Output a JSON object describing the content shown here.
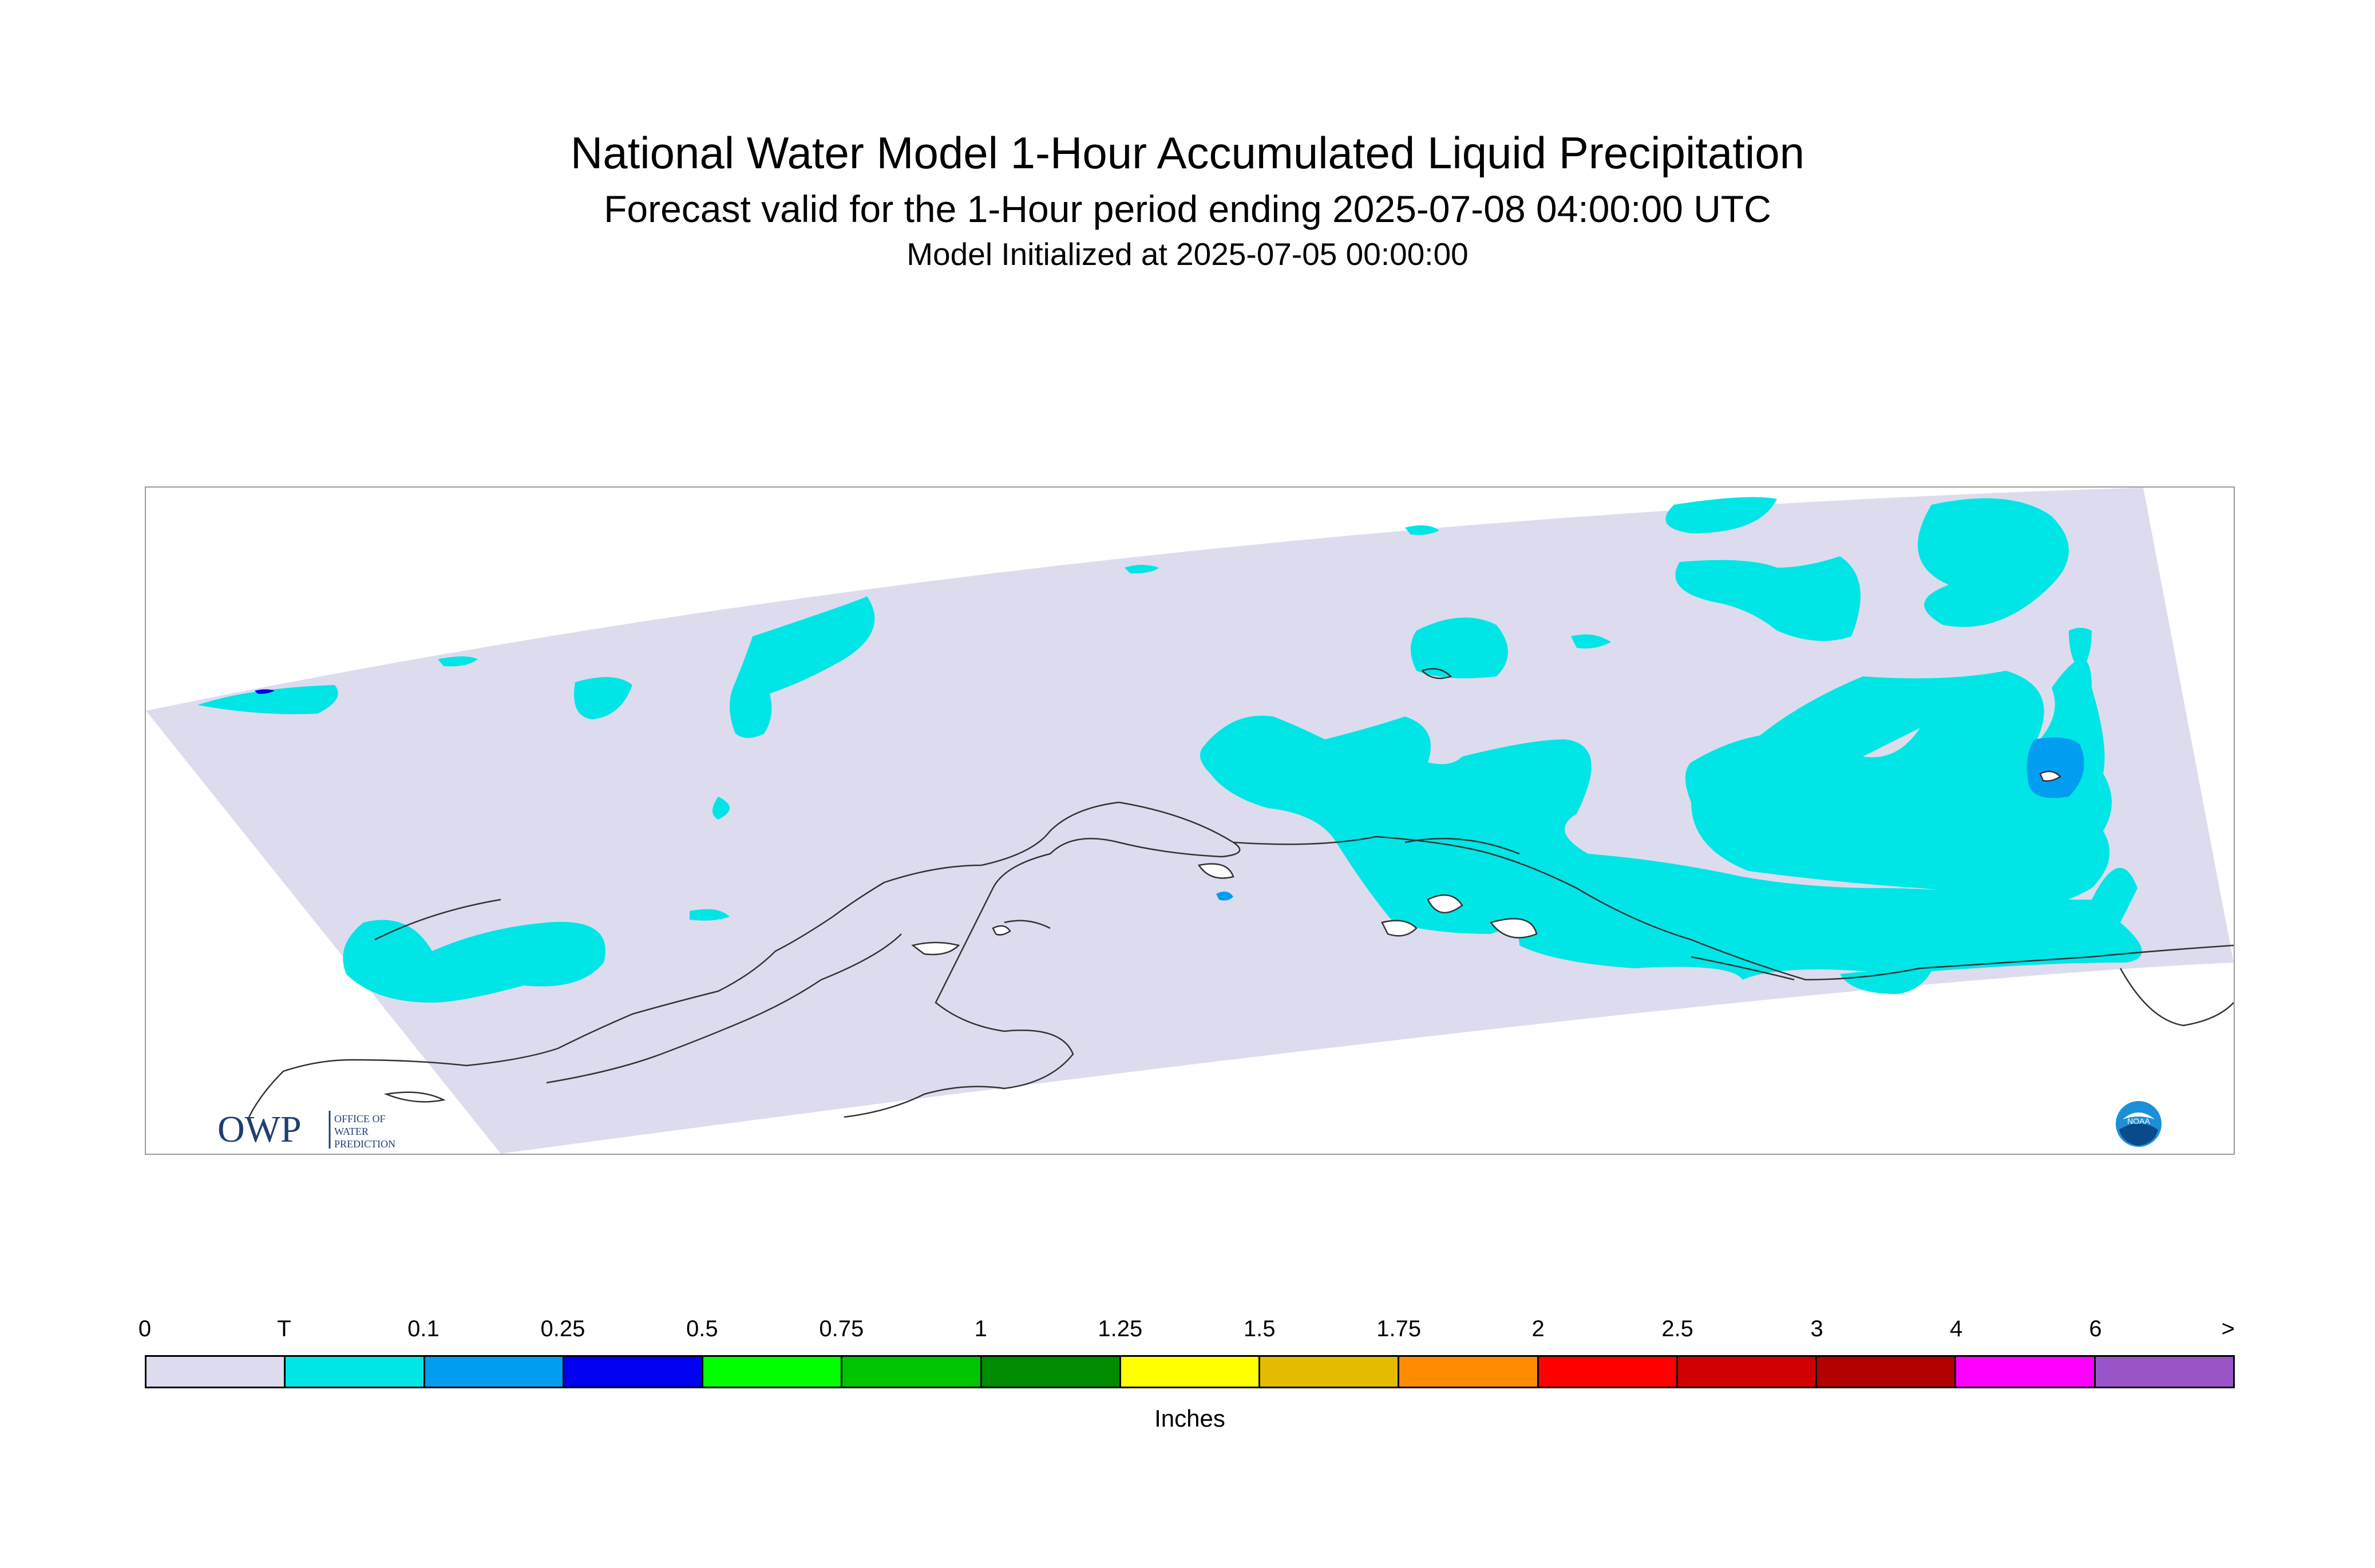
{
  "titles": {
    "main": "National Water Model 1-Hour Accumulated Liquid Precipitation",
    "sub": "Forecast valid for the 1-Hour period ending 2025-07-08 04:00:00 UTC",
    "init": "Model Initialized at 2025-07-05 00:00:00"
  },
  "logos": {
    "owp_mark": "OWP",
    "owp_text": [
      "OFFICE OF",
      "WATER",
      "PREDICTION"
    ],
    "noaa_text": "NOAA"
  },
  "legend": {
    "unit": "Inches",
    "tick_labels": [
      "0",
      "T",
      "0.1",
      "0.25",
      "0.5",
      "0.75",
      "1",
      "1.25",
      "1.5",
      "1.75",
      "2",
      "2.5",
      "3",
      "4",
      "6",
      ">"
    ],
    "colors": [
      "#dcdcee",
      "#00e5e5",
      "#009df0",
      "#0000f0",
      "#00ff00",
      "#00c400",
      "#008c00",
      "#ffff00",
      "#e5bb00",
      "#ff8c00",
      "#ff0000",
      "#d10000",
      "#b30000",
      "#ff00ff",
      "#9955c8"
    ]
  },
  "map": {
    "background_color": "#dcdcee",
    "precip_colors": {
      "trace": "#00e5e5",
      "light": "#009df0",
      "moderate": "#0000f0"
    },
    "coastline_color": "#333333"
  }
}
